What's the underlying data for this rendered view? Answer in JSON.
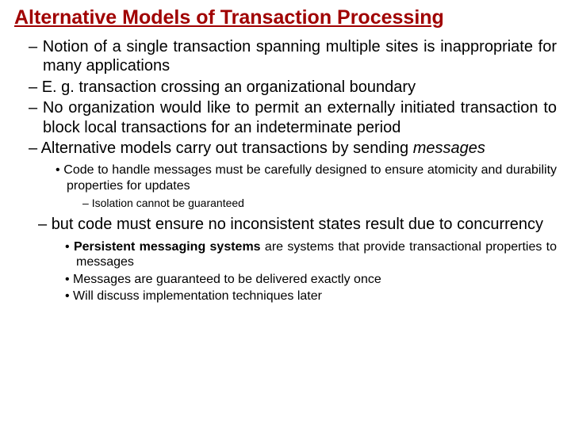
{
  "title": "Alternative Models of Transaction Processing",
  "colors": {
    "title": "#a00000",
    "text": "#000000",
    "background": "#ffffff"
  },
  "fonts": {
    "title_size": 25,
    "lvl1_size": 20,
    "lvl2_size": 16,
    "lvl3_size": 14,
    "family": "Arial"
  },
  "bullets": {
    "b1": "Notion of a single transaction spanning multiple sites is inappropriate for many applications",
    "b2": "E. g. transaction crossing an organizational boundary",
    "b3": "No organization would like to permit an externally initiated transaction  to block local transactions for an indeterminate period",
    "b4a": "Alternative models carry out transactions by sending ",
    "b4b": "messages",
    "b4_s1": "Code to handle messages must be carefully designed to ensure atomicity and durability properties for updates",
    "b4_s1_s1": "Isolation cannot be guaranteed",
    "b5": " but code must ensure no inconsistent states result due to concurrency",
    "b5_s1a": "Persistent messaging systems",
    "b5_s1b": " are systems that provide transactional properties to messages",
    "b5_s2": "Messages are guaranteed to be delivered exactly once",
    "b5_s3": "Will discuss implementation techniques later"
  }
}
